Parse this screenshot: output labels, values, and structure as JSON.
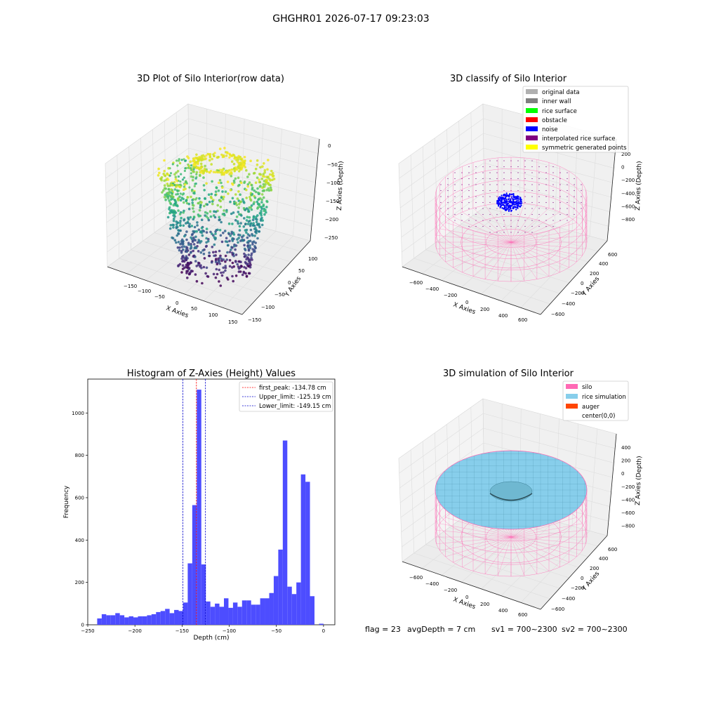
{
  "figure": {
    "suptitle": "GHGHR01 2026-07-17 09:23:03",
    "footer": {
      "flag": "flag = 23",
      "avg_depth": "avgDepth = 7 cm",
      "sv1": "sv1 = 700~2300",
      "sv2": "sv2 = 700~2300"
    }
  },
  "colors": {
    "hist_bar": "#4d4dff",
    "first_peak_line": "#ff0000",
    "limit_line": "#0000cc",
    "silo_wire": "#ff69b4",
    "rice_surface": "#87ceeb",
    "noise": "#0000ff",
    "pane": "#f2f2f2",
    "grid": "#dddddd"
  },
  "chart_data": [
    {
      "type": "scatter",
      "title": "3D Plot of Silo Interior(row data)",
      "xlabel": "X Axies",
      "ylabel": "Y Axies",
      "zlabel": "Z Axies (Depth)",
      "xticks": [
        "−150",
        "−100",
        "−50",
        "0",
        "50",
        "100",
        "150"
      ],
      "yticks": [
        "−150",
        "−100",
        "−50",
        "0",
        "50",
        "100"
      ],
      "zticks": [
        "0",
        "−50",
        "−100",
        "−150",
        "−200",
        "−250"
      ],
      "xlim": [
        -180,
        180
      ],
      "ylim": [
        -160,
        130
      ],
      "zlim": [
        -260,
        0
      ],
      "colormap": "viridis"
    },
    {
      "type": "scatter",
      "title": "3D classify of Silo Interior",
      "xlabel": "X Axies",
      "ylabel": "Y Axies",
      "zlabel": "Z Axies (Depth)",
      "xticks": [
        "−600",
        "−400",
        "−200",
        "0",
        "200",
        "400",
        "600"
      ],
      "yticks": [
        "−600",
        "−400",
        "−200",
        "0",
        "200",
        "400",
        "600"
      ],
      "zticks": [
        "200",
        "0",
        "−200",
        "−400",
        "−600",
        "−800"
      ],
      "legend": [
        {
          "label": "original data",
          "color": "#b0b0b0"
        },
        {
          "label": "inner wall",
          "color": "#808080"
        },
        {
          "label": "rice surface",
          "color": "#00ff00"
        },
        {
          "label": "obstacle",
          "color": "#ff0000"
        },
        {
          "label": "noise",
          "color": "#0000ff"
        },
        {
          "label": "interpolated rice surface",
          "color": "#800080"
        },
        {
          "label": "symmetric generated points",
          "color": "#ffff00"
        }
      ],
      "legend_position": "upper-right"
    },
    {
      "type": "bar",
      "title": "Histogram of Z-Axies (Height) Values",
      "xlabel": "Depth (cm)",
      "ylabel": "Frequency",
      "xlim": [
        -250,
        12
      ],
      "ylim": [
        0,
        1160
      ],
      "xticks": [
        -250,
        -200,
        -150,
        -100,
        -50,
        0
      ],
      "yticks": [
        0,
        200,
        400,
        600,
        800,
        1000
      ],
      "bin_start": -240,
      "bin_width": 4.8,
      "values": [
        30,
        50,
        45,
        45,
        55,
        45,
        35,
        40,
        35,
        40,
        40,
        45,
        50,
        60,
        65,
        75,
        55,
        70,
        65,
        105,
        290,
        565,
        1110,
        285,
        110,
        85,
        100,
        85,
        125,
        80,
        105,
        85,
        115,
        115,
        95,
        95,
        125,
        125,
        150,
        230,
        355,
        870,
        180,
        145,
        200,
        710,
        675,
        135,
        0,
        5
      ],
      "vlines": [
        {
          "x": -134.78,
          "label": "first_peak: -134.78 cm",
          "color": "#ff0000"
        },
        {
          "x": -125.19,
          "label": "Upper_limit: -125.19 cm",
          "color": "#0000cc"
        },
        {
          "x": -149.15,
          "label": "Lower_limit: -149.15 cm",
          "color": "#0000cc"
        }
      ],
      "legend_position": "upper-right"
    },
    {
      "type": "scatter",
      "title": "3D simulation of Silo Interior",
      "xlabel": "X Axies",
      "ylabel": "Y Axies",
      "zlabel": "Z Axies (Depth)",
      "xticks": [
        "−600",
        "−400",
        "−200",
        "0",
        "200",
        "400",
        "600"
      ],
      "yticks": [
        "−600",
        "−400",
        "−200",
        "0",
        "200",
        "400",
        "600"
      ],
      "zticks": [
        "400",
        "200",
        "0",
        "−200",
        "−400",
        "−600",
        "−800"
      ],
      "legend": [
        {
          "label": "silo",
          "color": "#ff69b4"
        },
        {
          "label": "rice simulation",
          "color": "#87ceeb"
        },
        {
          "label": "auger",
          "color": "#ff4500"
        },
        {
          "label": "center(0,0)",
          "color": "#ffffff"
        }
      ],
      "legend_position": "upper-right"
    }
  ]
}
